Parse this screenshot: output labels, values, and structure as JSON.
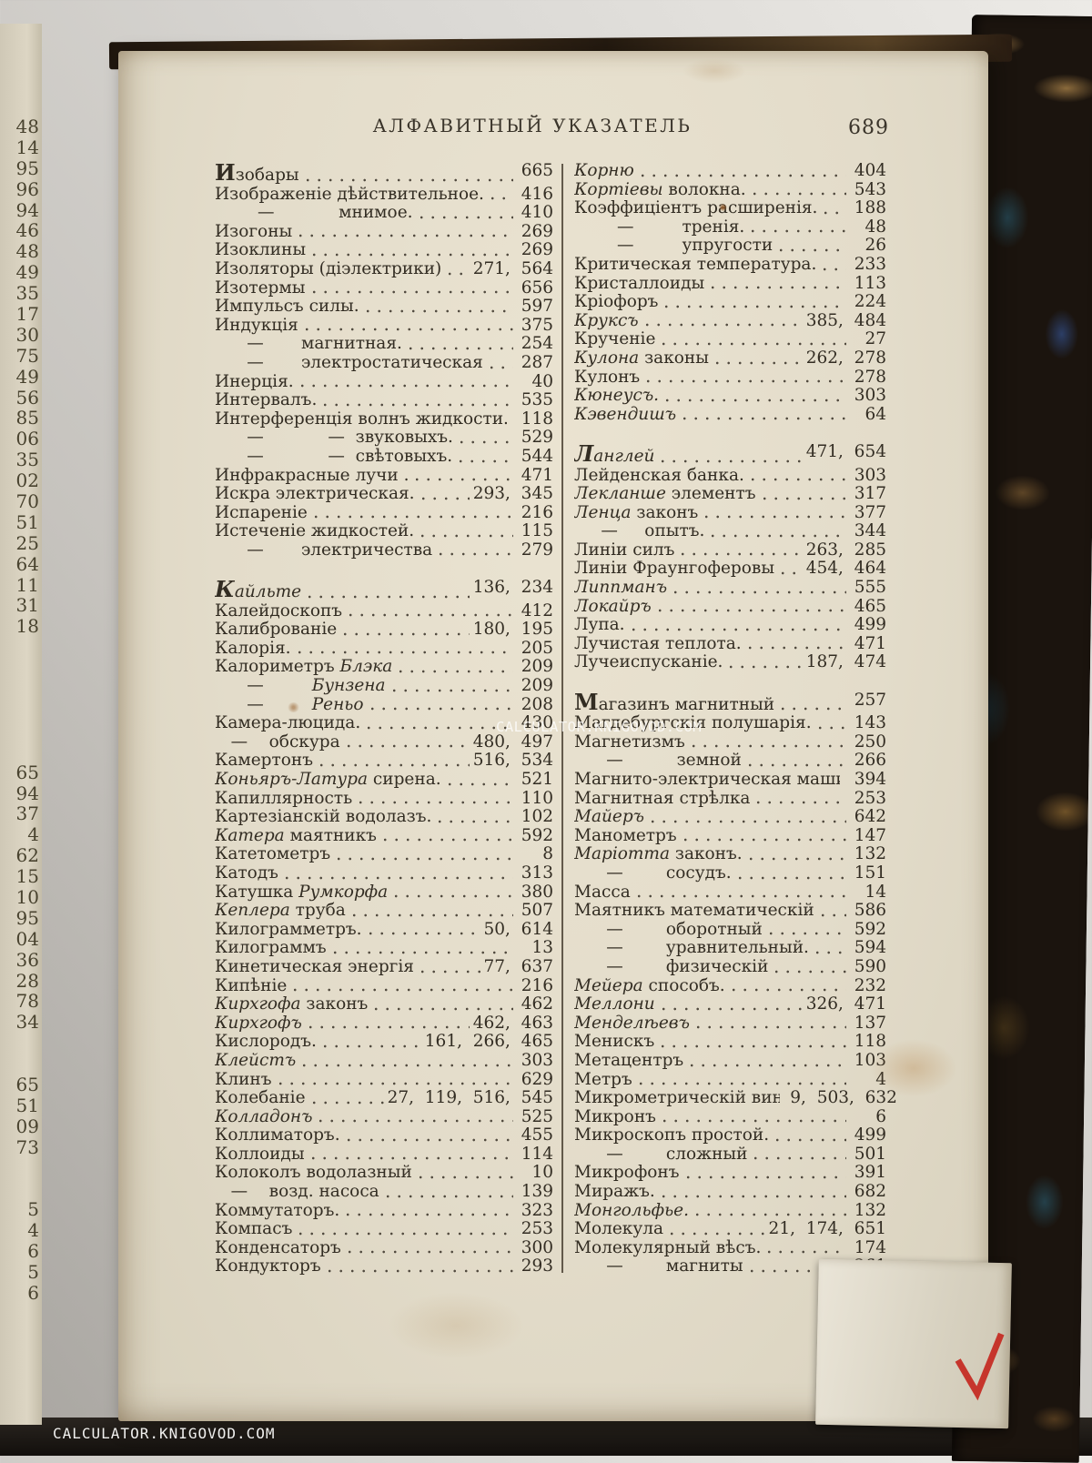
{
  "page": {
    "running_title": "АЛФАВИТНЫЙ УКАЗАТЕЛЬ",
    "page_number": "689"
  },
  "photo": {
    "watermark": "CALCULATOR.KNIGOVOD.COM",
    "checkmark_color": "#c4281f",
    "edge_numbers": [
      "48",
      "14",
      "95",
      "96",
      "94",
      "46",
      "48",
      "49",
      "35",
      "17",
      "30",
      "75",
      "49",
      "56",
      "85",
      "06",
      "35",
      "02",
      "70",
      "51",
      "25",
      "64",
      "11",
      "31",
      "18",
      "",
      "",
      "",
      "",
      "",
      "",
      "65",
      "94",
      "37",
      "4",
      "62",
      "15",
      "10",
      "95",
      "04",
      "36",
      "28",
      "78",
      "34",
      "",
      "",
      "65",
      "51",
      "09",
      "73",
      "",
      "",
      "5",
      "4",
      "6",
      "5",
      "6"
    ]
  },
  "index": {
    "columns": [
      [
        {
          "c": "И",
          "pre": "зобары",
          "pg": "665"
        },
        {
          "pre": "Изображеніе дѣйствительное.",
          "pg": "416"
        },
        {
          "pre": "        —            мнимое.",
          "pg": "410"
        },
        {
          "pre": "Изогоны",
          "pg": "269"
        },
        {
          "pre": "Изоклины",
          "pg": "269"
        },
        {
          "pre": "Изоляторы (діэлектрики)",
          "pg": "271,  564"
        },
        {
          "pre": "Изотермы",
          "pg": "656"
        },
        {
          "pre": "Импульсъ силы.",
          "pg": "597"
        },
        {
          "pre": "Индукція",
          "pg": "375"
        },
        {
          "pre": "      —       магнитная.",
          "pg": "254"
        },
        {
          "pre": "      —       электростатическая",
          "pg": "287"
        },
        {
          "pre": "Инерція.",
          "pg": "40"
        },
        {
          "pre": "Интервалъ.",
          "pg": "535"
        },
        {
          "pre": "Интерференція волнъ жидкости.",
          "pg": "118"
        },
        {
          "pre": "      —            —  звуковыхъ.",
          "pg": "529"
        },
        {
          "pre": "      —            —  свѣтовыхъ.",
          "pg": "544"
        },
        {
          "pre": "Инфракрасные лучи .",
          "pg": "471"
        },
        {
          "pre": "Искра электрическая.",
          "pg": "293,  345"
        },
        {
          "pre": "Испареніе",
          "pg": "216"
        },
        {
          "pre": "Истеченіе жидкостей.",
          "pg": "115"
        },
        {
          "pre": "      —       электричества",
          "pg": "279"
        },
        {
          "g": 1
        },
        {
          "c": "К",
          "ci": 1,
          "it": "айльте",
          "pg": "136,  234"
        },
        {
          "pre": "Калейдоскопъ",
          "pg": "412"
        },
        {
          "pre": "Калиброваніе",
          "pg": "180,  195"
        },
        {
          "pre": "Калорія.",
          "pg": "205"
        },
        {
          "pre": "Калориметръ ",
          "it": "Блэка",
          "pg": "209"
        },
        {
          "pre": "      —         ",
          "it": "Бунзена",
          "pg": "209"
        },
        {
          "pre": "      —         ",
          "it": "Реньо",
          "pg": "208"
        },
        {
          "pre": "Камера-люцида.",
          "pg": "430"
        },
        {
          "pre": "   —    обскура",
          "pg": "480,  497"
        },
        {
          "pre": "Камертонъ",
          "pg": "516,  534"
        },
        {
          "it": "Коньяръ-Латура",
          "post": " сирена.",
          "pg": "521"
        },
        {
          "pre": "Капиллярность",
          "pg": "110"
        },
        {
          "pre": "Картезіанскій водолазъ.",
          "pg": "102"
        },
        {
          "it": "Катера",
          "post": " маятникъ",
          "pg": "592"
        },
        {
          "pre": "Катетометръ",
          "pg": "8"
        },
        {
          "pre": "Катодъ",
          "pg": "313"
        },
        {
          "pre": "Катушка ",
          "it": "Румкорфа",
          "pg": "380"
        },
        {
          "it": "Кеплера",
          "post": " труба",
          "pg": "507"
        },
        {
          "pre": "Килограмметръ.",
          "pg": "50,  614"
        },
        {
          "pre": "Килограммъ",
          "pg": "13"
        },
        {
          "pre": "Кинетическая энергія",
          "pg": "77,  637"
        },
        {
          "pre": "Кипѣніе",
          "pg": "216"
        },
        {
          "it": "Кирхгофа",
          "post": " законъ",
          "pg": "462"
        },
        {
          "it": "Кирхгофъ",
          "pg": "462,  463"
        },
        {
          "pre": "Кислородъ.",
          "pg": "161,  266,  465"
        },
        {
          "it": "Клейстъ",
          "pg": "303"
        },
        {
          "pre": "Клинъ",
          "pg": "629"
        },
        {
          "pre": "Колебаніе",
          "pg": "27,  119,  516,  545"
        },
        {
          "it": "Колладонъ",
          "pg": "525"
        },
        {
          "pre": "Коллиматоръ.",
          "pg": "455"
        },
        {
          "pre": "Коллоиды",
          "pg": "114"
        },
        {
          "pre": "Колоколъ водолазный",
          "pg": "10"
        },
        {
          "pre": "   —    возд. насоса",
          "pg": "139"
        },
        {
          "pre": "Коммутаторъ.",
          "pg": "323"
        },
        {
          "pre": "Компасъ",
          "pg": "253"
        },
        {
          "pre": "Конденсаторъ",
          "pg": "300"
        },
        {
          "pre": "Кондукторъ",
          "pg": "293"
        }
      ],
      [
        {
          "it": "Корню",
          "pg": "404"
        },
        {
          "it": "Кортіевы",
          "post": " волокна.",
          "pg": "543"
        },
        {
          "pre": "Коэффиціентъ расширенія.",
          "pg": "188"
        },
        {
          "pre": "        —         тренія.",
          "pg": "48"
        },
        {
          "pre": "        —         упругости",
          "pg": "26"
        },
        {
          "pre": "Критическая температура.",
          "pg": "233"
        },
        {
          "pre": "Кристаллоиды",
          "pg": "113"
        },
        {
          "pre": "Кріофоръ",
          "pg": "224"
        },
        {
          "it": "Круксъ",
          "pg": "385,  484"
        },
        {
          "pre": "Крученіе",
          "pg": "27"
        },
        {
          "it": "Кулона",
          "post": " законы",
          "pg": "262,  278"
        },
        {
          "pre": "Кулонъ",
          "pg": "278"
        },
        {
          "it": "Кюнеусъ.",
          "pg": "303"
        },
        {
          "it": "Кэвендишъ",
          "pg": "64"
        },
        {
          "g": 1
        },
        {
          "c": "Л",
          "ci": 1,
          "it": "англей",
          "pg": "471,  654"
        },
        {
          "pre": "Лейденская банка.",
          "pg": "303"
        },
        {
          "it": "Лекланше",
          "post": " элементъ",
          "pg": "317"
        },
        {
          "it": "Ленца",
          "post": " законъ",
          "pg": "377"
        },
        {
          "pre": "     —     опытъ.",
          "pg": "344"
        },
        {
          "pre": "Линіи силъ",
          "pg": "263,  285"
        },
        {
          "pre": "Линіи Фраунгоферовы",
          "pg": "454,  464"
        },
        {
          "it": "Липпманъ",
          "pg": "555"
        },
        {
          "it": "Локайръ",
          "pg": "465"
        },
        {
          "pre": "Лупа.",
          "pg": "499"
        },
        {
          "pre": "Лучистая теплота.",
          "pg": "471"
        },
        {
          "pre": "Лучеиспусканіе.",
          "pg": "187,  474"
        },
        {
          "g": 1
        },
        {
          "c": "М",
          "pre": "агазинъ магнитный",
          "pg": "257"
        },
        {
          "pre": "Магдебургскія полушарія.",
          "pg": "143"
        },
        {
          "pre": "Магнетизмъ",
          "pg": "250"
        },
        {
          "pre": "      —          земной",
          "pg": "266"
        },
        {
          "pre": "Магнито-электрическая машина.",
          "pg": "394"
        },
        {
          "pre": "Магнитная стрѣлка",
          "pg": "253"
        },
        {
          "it": "Майеръ",
          "pg": "642"
        },
        {
          "pre": "Манометръ",
          "pg": "147"
        },
        {
          "it": "Маріотта",
          "post": " законъ.",
          "pg": "132"
        },
        {
          "pre": "      —        сосудъ.",
          "pg": "151"
        },
        {
          "pre": "Масса",
          "pg": "14"
        },
        {
          "pre": "Маятникъ математическій",
          "pg": "586"
        },
        {
          "pre": "      —        оборотный",
          "pg": "592"
        },
        {
          "pre": "      —        уравнительный.",
          "pg": "594"
        },
        {
          "pre": "      —        физическій",
          "pg": "590"
        },
        {
          "it": "Мейера",
          "post": " способъ.",
          "pg": "232"
        },
        {
          "it": "Меллони",
          "pg": "326,  471"
        },
        {
          "it": "Менделѣевъ",
          "pg": "137"
        },
        {
          "pre": "Менискъ",
          "pg": "118"
        },
        {
          "pre": "Метацентръ",
          "pg": "103"
        },
        {
          "pre": "Метръ",
          "pg": "4"
        },
        {
          "pre": "Микрометрическій винтъ",
          "pg": "9,  503,  632"
        },
        {
          "pre": "Микронъ",
          "pg": "6"
        },
        {
          "pre": "Микроскопъ простой.",
          "pg": "499"
        },
        {
          "pre": "      —        сложный",
          "pg": "501"
        },
        {
          "pre": "Микрофонъ",
          "pg": "391"
        },
        {
          "pre": "Миражъ.",
          "pg": "682"
        },
        {
          "it": "Монгольфье.",
          "pg": "132"
        },
        {
          "pre": "Молекула",
          "pg": "21,  174,  651"
        },
        {
          "pre": "Молекулярный вѣсъ.",
          "pg": "174"
        },
        {
          "pre": "      —        магниты",
          "pg": "261"
        }
      ]
    ]
  }
}
